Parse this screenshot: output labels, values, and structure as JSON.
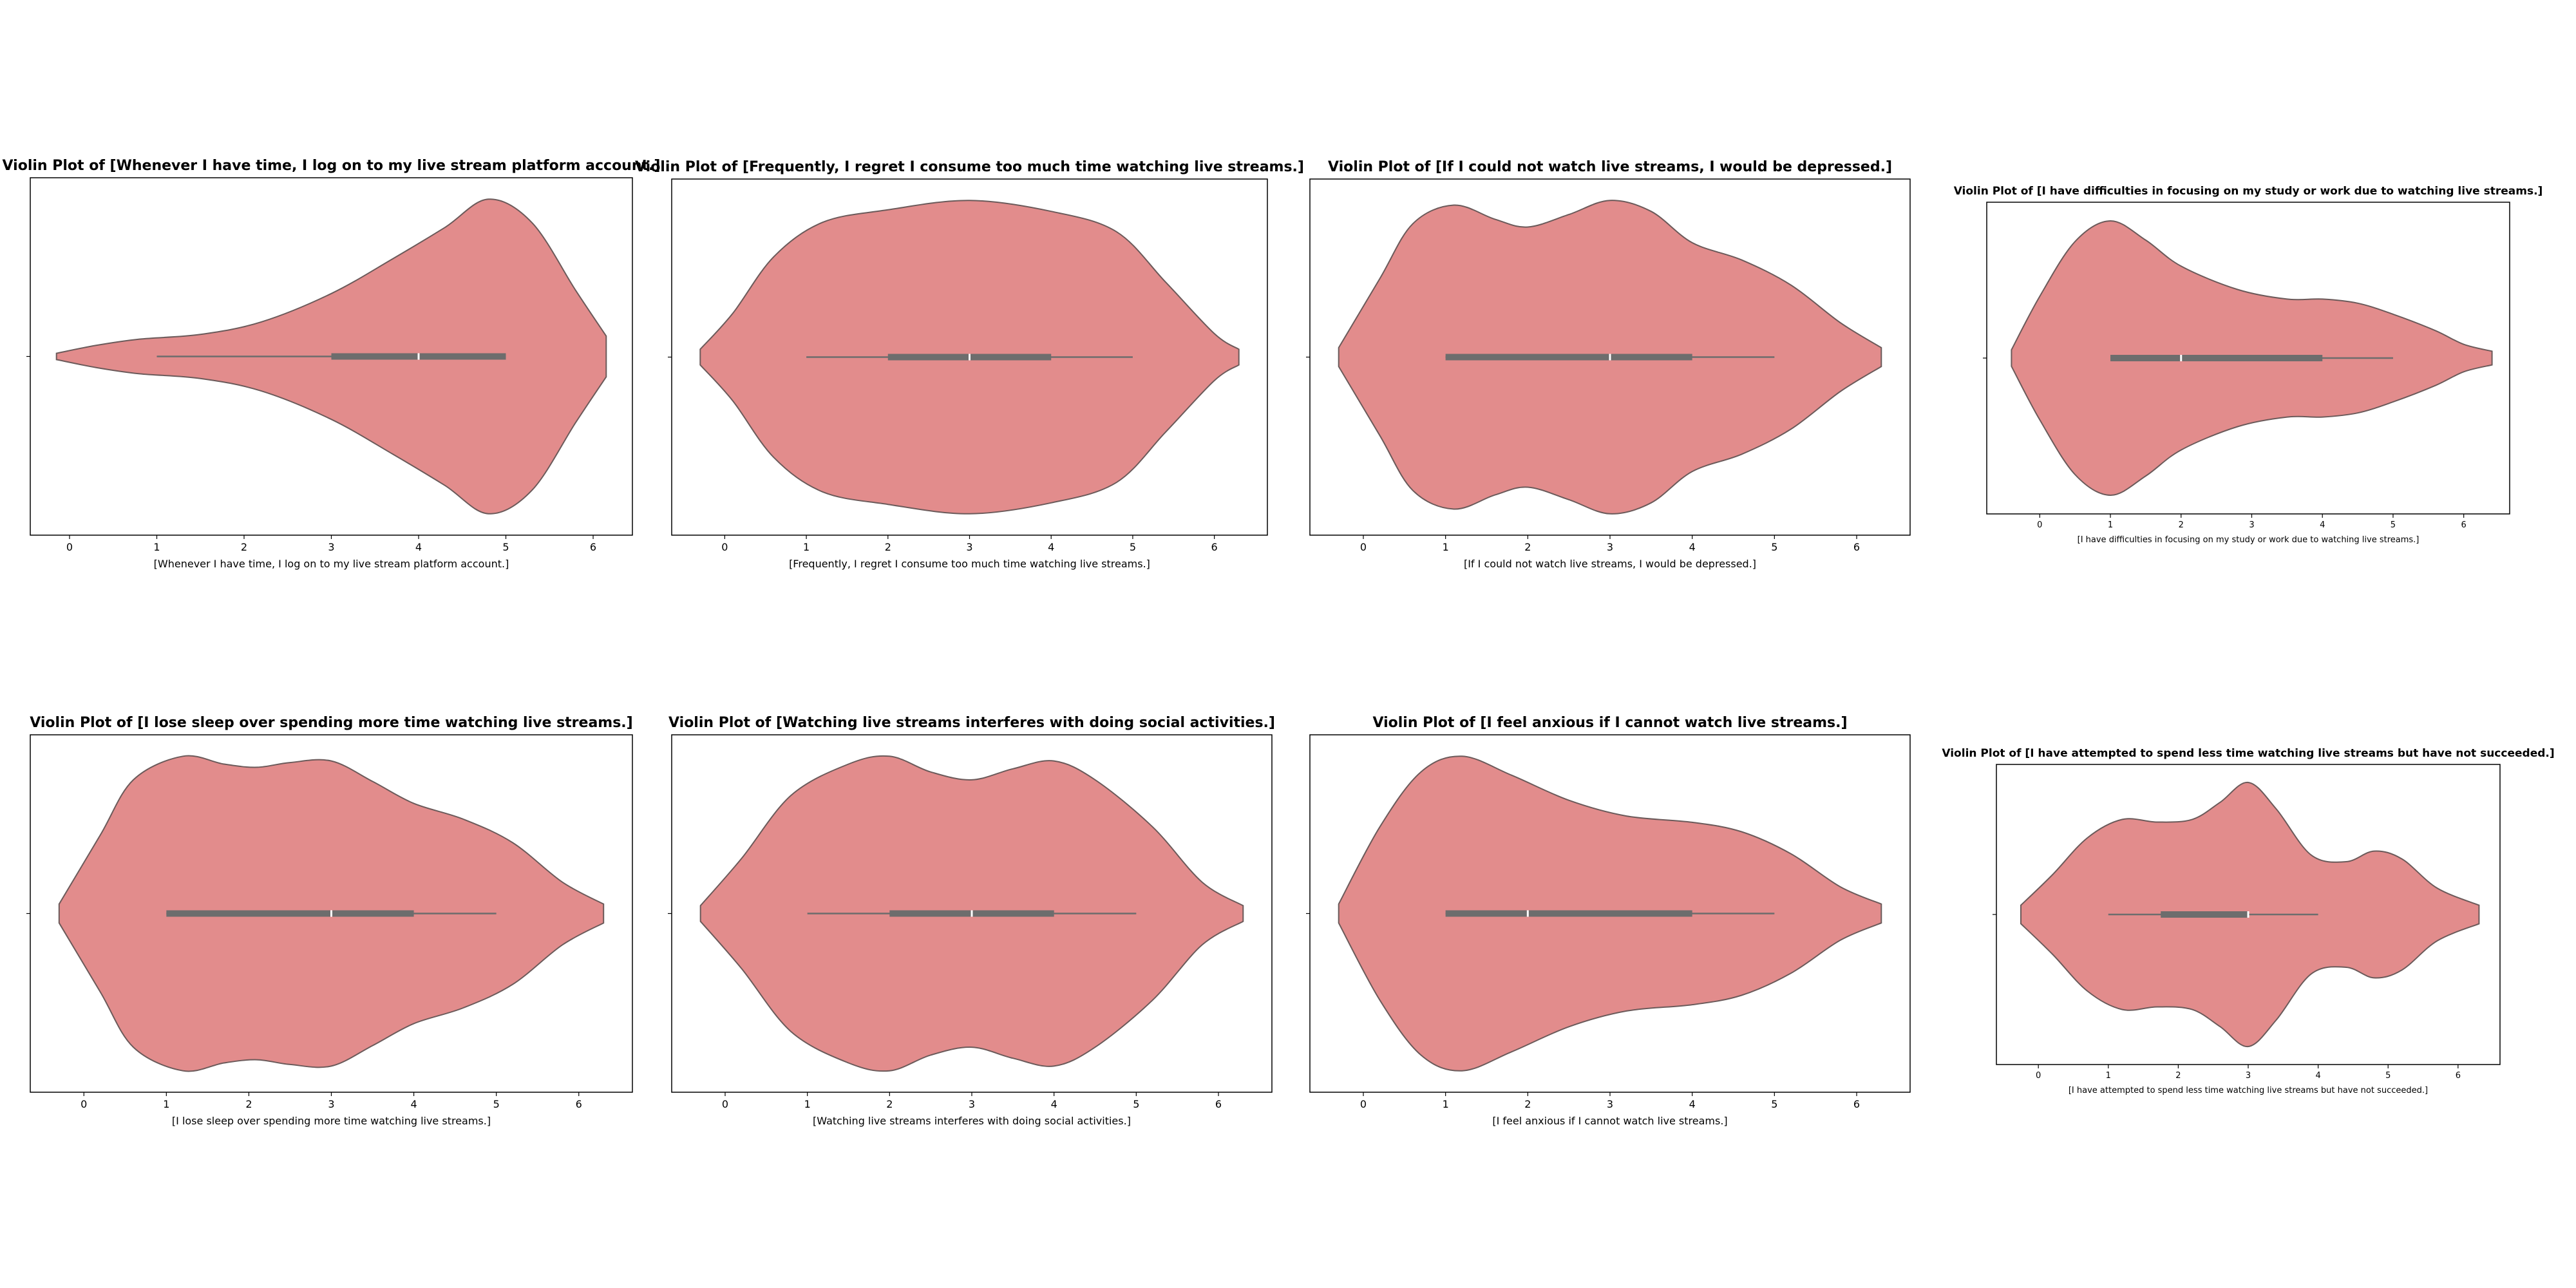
{
  "figure": {
    "violin_fill": "#e28c8c",
    "violin_edge": "#6b5a5a",
    "box_color": "#6d6d6d",
    "median_color": "#ffffff"
  },
  "chart_data": [
    {
      "type": "violin",
      "title": "Violin Plot of [Whenever I have time, I log on to my live stream platform account.]",
      "xlabel": "[Whenever I have time, I log on to my live stream platform account.]",
      "xticks": [
        0,
        1,
        2,
        3,
        4,
        5,
        6
      ],
      "xlim": [
        -0.45,
        6.45
      ],
      "density": [
        [
          -0.15,
          0.02
        ],
        [
          0.3,
          0.07
        ],
        [
          0.8,
          0.11
        ],
        [
          1.5,
          0.14
        ],
        [
          2.2,
          0.22
        ],
        [
          3.0,
          0.4
        ],
        [
          3.7,
          0.62
        ],
        [
          4.3,
          0.82
        ],
        [
          4.8,
          1.0
        ],
        [
          5.3,
          0.85
        ],
        [
          5.8,
          0.42
        ],
        [
          6.15,
          0.13
        ]
      ],
      "box": {
        "whisker_low": 1,
        "q1": 3,
        "median": 4,
        "q3": 5,
        "whisker_high": 5
      }
    },
    {
      "type": "violin",
      "title": "Violin Plot of [Frequently, I regret I consume too much time watching live streams.]",
      "xlabel": "[Frequently, I regret I consume too much time watching live streams.]",
      "xticks": [
        0,
        1,
        2,
        3,
        4,
        5,
        6
      ],
      "xlim": [
        -0.65,
        6.65
      ],
      "density": [
        [
          -0.3,
          0.05
        ],
        [
          0.1,
          0.28
        ],
        [
          0.6,
          0.64
        ],
        [
          1.2,
          0.86
        ],
        [
          2.0,
          0.94
        ],
        [
          3.0,
          1.0
        ],
        [
          4.0,
          0.93
        ],
        [
          4.8,
          0.8
        ],
        [
          5.4,
          0.48
        ],
        [
          6.0,
          0.15
        ],
        [
          6.3,
          0.05
        ]
      ],
      "box": {
        "whisker_low": 1,
        "q1": 2,
        "median": 3,
        "q3": 4,
        "whisker_high": 5
      }
    },
    {
      "type": "violin",
      "title": "Violin Plot of [If I could not watch live streams, I would be depressed.]",
      "xlabel": "[If I could not watch live streams, I would be depressed.]",
      "xticks": [
        0,
        1,
        2,
        3,
        4,
        5,
        6
      ],
      "xlim": [
        -0.65,
        6.65
      ],
      "density": [
        [
          -0.3,
          0.06
        ],
        [
          0.2,
          0.5
        ],
        [
          0.6,
          0.85
        ],
        [
          1.1,
          0.97
        ],
        [
          1.6,
          0.88
        ],
        [
          2.0,
          0.83
        ],
        [
          2.5,
          0.91
        ],
        [
          3.0,
          1.0
        ],
        [
          3.5,
          0.93
        ],
        [
          4.0,
          0.73
        ],
        [
          4.6,
          0.62
        ],
        [
          5.2,
          0.46
        ],
        [
          5.8,
          0.22
        ],
        [
          6.3,
          0.06
        ]
      ],
      "box": {
        "whisker_low": 1,
        "q1": 1,
        "median": 3,
        "q3": 4,
        "whisker_high": 5
      }
    },
    {
      "type": "violin",
      "title": "Violin Plot of [I have difficulties in focusing on my study or work due to watching live streams.]",
      "xlabel": "[I have difficulties in focusing on my study or work due to watching live streams.]",
      "xticks": [
        0,
        1,
        2,
        3,
        4,
        5,
        6
      ],
      "xlim": [
        -0.75,
        6.65
      ],
      "density": [
        [
          -0.4,
          0.06
        ],
        [
          0.0,
          0.45
        ],
        [
          0.5,
          0.85
        ],
        [
          1.0,
          1.0
        ],
        [
          1.5,
          0.86
        ],
        [
          2.0,
          0.67
        ],
        [
          2.8,
          0.5
        ],
        [
          3.5,
          0.43
        ],
        [
          4.0,
          0.43
        ],
        [
          4.5,
          0.4
        ],
        [
          5.0,
          0.32
        ],
        [
          5.6,
          0.2
        ],
        [
          6.0,
          0.1
        ],
        [
          6.4,
          0.05
        ]
      ],
      "box": {
        "whisker_low": 1,
        "q1": 1,
        "median": 2,
        "q3": 4,
        "whisker_high": 5
      }
    },
    {
      "type": "violin",
      "title": "Violin Plot of [I lose sleep over spending more time watching live streams.]",
      "xlabel": "[I lose sleep over spending more time watching live streams.]",
      "xticks": [
        0,
        1,
        2,
        3,
        4,
        5,
        6
      ],
      "xlim": [
        -0.65,
        6.65
      ],
      "density": [
        [
          -0.3,
          0.06
        ],
        [
          0.2,
          0.5
        ],
        [
          0.6,
          0.85
        ],
        [
          1.2,
          1.0
        ],
        [
          1.7,
          0.95
        ],
        [
          2.1,
          0.93
        ],
        [
          2.5,
          0.96
        ],
        [
          3.0,
          0.97
        ],
        [
          3.5,
          0.84
        ],
        [
          4.0,
          0.7
        ],
        [
          4.6,
          0.6
        ],
        [
          5.2,
          0.45
        ],
        [
          5.8,
          0.2
        ],
        [
          6.3,
          0.06
        ]
      ],
      "box": {
        "whisker_low": 1,
        "q1": 1,
        "median": 3,
        "q3": 4,
        "whisker_high": 5
      }
    },
    {
      "type": "violin",
      "title": "Violin Plot of [Watching live streams interferes with doing social activities.]",
      "xlabel": "[Watching live streams interferes with doing social activities.]",
      "xticks": [
        0,
        1,
        2,
        3,
        4,
        5,
        6
      ],
      "xlim": [
        -0.65,
        6.65
      ],
      "density": [
        [
          -0.3,
          0.05
        ],
        [
          0.2,
          0.35
        ],
        [
          0.8,
          0.75
        ],
        [
          1.5,
          0.95
        ],
        [
          2.0,
          1.0
        ],
        [
          2.5,
          0.9
        ],
        [
          3.0,
          0.85
        ],
        [
          3.5,
          0.92
        ],
        [
          4.0,
          0.97
        ],
        [
          4.5,
          0.85
        ],
        [
          5.2,
          0.55
        ],
        [
          5.8,
          0.2
        ],
        [
          6.3,
          0.05
        ]
      ],
      "box": {
        "whisker_low": 1,
        "q1": 2,
        "median": 3,
        "q3": 4,
        "whisker_high": 5
      }
    },
    {
      "type": "violin",
      "title": "Violin Plot of [I feel anxious if I cannot watch live streams.]",
      "xlabel": "[I feel anxious if I cannot watch live streams.]",
      "xticks": [
        0,
        1,
        2,
        3,
        4,
        5,
        6
      ],
      "xlim": [
        -0.65,
        6.65
      ],
      "density": [
        [
          -0.3,
          0.06
        ],
        [
          0.2,
          0.55
        ],
        [
          0.7,
          0.9
        ],
        [
          1.2,
          1.0
        ],
        [
          1.8,
          0.88
        ],
        [
          2.5,
          0.72
        ],
        [
          3.2,
          0.62
        ],
        [
          4.0,
          0.58
        ],
        [
          4.6,
          0.52
        ],
        [
          5.2,
          0.38
        ],
        [
          5.8,
          0.17
        ],
        [
          6.3,
          0.06
        ]
      ],
      "box": {
        "whisker_low": 1,
        "q1": 1,
        "median": 2,
        "q3": 4,
        "whisker_high": 5
      }
    },
    {
      "type": "violin",
      "title": "Violin Plot of [I have attempted to spend less time watching live streams but have not succeeded.]",
      "xlabel": "[I have attempted to spend less time watching live streams but have not succeeded.]",
      "xticks": [
        0,
        1,
        2,
        3,
        4,
        5,
        6
      ],
      "xlim": [
        -0.6,
        6.6
      ],
      "density": [
        [
          -0.25,
          0.07
        ],
        [
          0.2,
          0.3
        ],
        [
          0.7,
          0.58
        ],
        [
          1.2,
          0.72
        ],
        [
          1.7,
          0.7
        ],
        [
          2.2,
          0.72
        ],
        [
          2.6,
          0.85
        ],
        [
          3.0,
          1.0
        ],
        [
          3.4,
          0.8
        ],
        [
          3.9,
          0.45
        ],
        [
          4.4,
          0.4
        ],
        [
          4.8,
          0.48
        ],
        [
          5.2,
          0.42
        ],
        [
          5.7,
          0.2
        ],
        [
          6.3,
          0.07
        ]
      ],
      "box": {
        "whisker_low": 1,
        "q1": 1.75,
        "median": 3,
        "q3": 3,
        "whisker_high": 4
      }
    }
  ]
}
